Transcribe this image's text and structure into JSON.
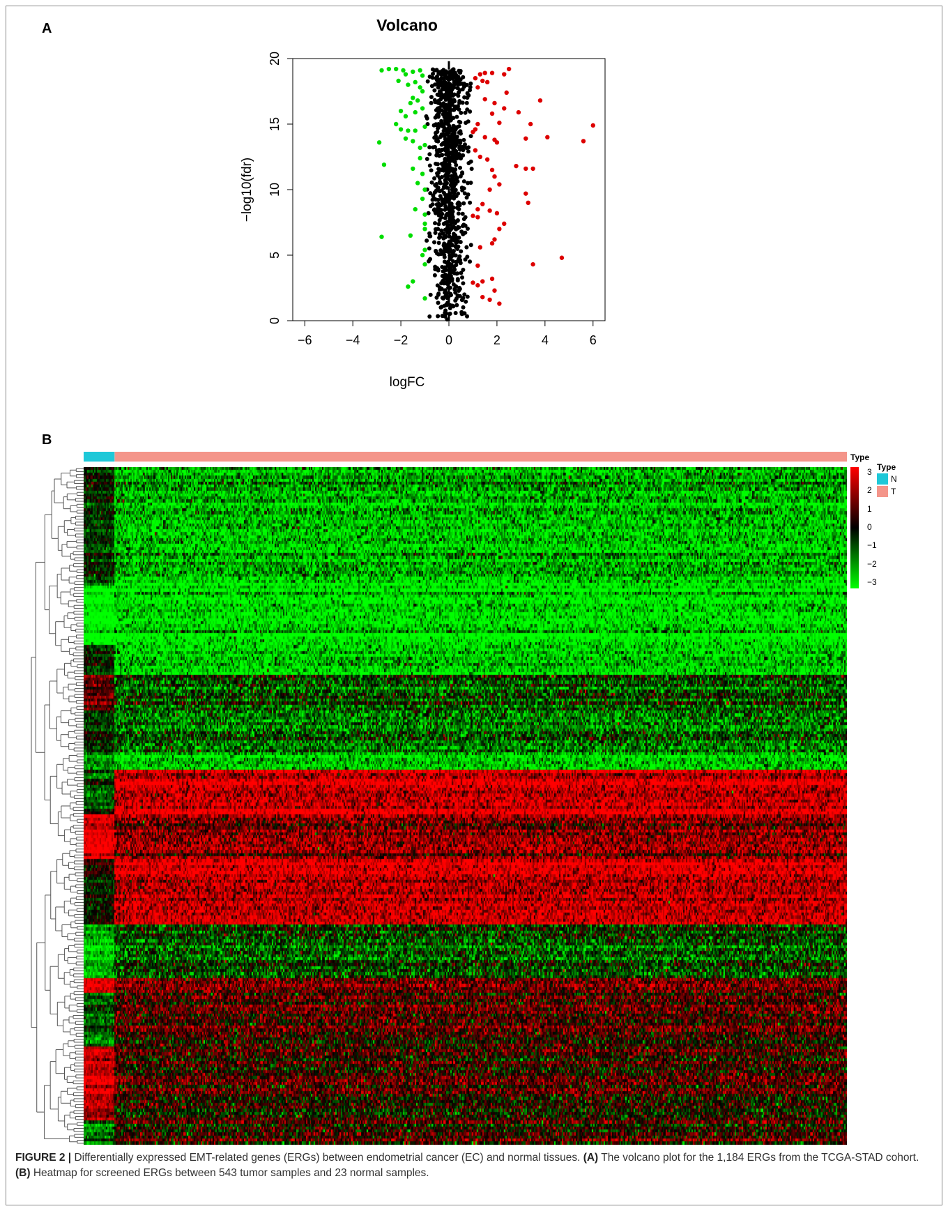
{
  "panels": {
    "a_label": "A",
    "b_label": "B"
  },
  "caption": {
    "figure_label": "FIGURE 2 |",
    "text1": " Differentially expressed EMT-related genes (ERGs) between endometrial cancer (EC) and normal tissues. ",
    "a_ref": "(A)",
    "text2": " The volcano plot for the 1,184 ERGs from the TCGA-STAD cohort. ",
    "b_ref": "(B)",
    "text3": " Heatmap for screened ERGs between 543 tumor samples and 23 normal samples."
  },
  "chart_data": [
    {
      "type": "scatter",
      "title": "Volcano",
      "xlabel": "logFC",
      "ylabel": "−log10(fdr)",
      "xlim": [
        -6.5,
        6.5
      ],
      "ylim": [
        0,
        20
      ],
      "xticks": [
        "−6",
        "−4",
        "−2",
        "0",
        "2",
        "4",
        "6"
      ],
      "xtick_values": [
        -6,
        -4,
        -2,
        0,
        2,
        4,
        6
      ],
      "yticks": [
        "0",
        "5",
        "10",
        "15",
        "20"
      ],
      "ytick_values": [
        0,
        5,
        10,
        15,
        20
      ],
      "grid": false,
      "colors": {
        "down": "#00dd00",
        "up": "#dd0000",
        "ns": "#000000"
      },
      "series": [
        {
          "color_key": "down",
          "points": [
            [
              -2.8,
              19.1
            ],
            [
              -2.5,
              19.2
            ],
            [
              -2.2,
              19.2
            ],
            [
              -1.9,
              19.1
            ],
            [
              -1.8,
              18.8
            ],
            [
              -1.5,
              19.0
            ],
            [
              -1.2,
              19.1
            ],
            [
              -1.1,
              18.7
            ],
            [
              -2.1,
              18.3
            ],
            [
              -1.7,
              18.0
            ],
            [
              -1.4,
              18.2
            ],
            [
              -1.2,
              17.8
            ],
            [
              -1.1,
              17.5
            ],
            [
              -1.5,
              17.0
            ],
            [
              -1.3,
              16.8
            ],
            [
              -1.6,
              16.6
            ],
            [
              -2.0,
              16.0
            ],
            [
              -1.8,
              15.6
            ],
            [
              -1.4,
              15.9
            ],
            [
              -1.1,
              16.2
            ],
            [
              -2.2,
              15.0
            ],
            [
              -2.0,
              14.6
            ],
            [
              -1.7,
              14.5
            ],
            [
              -1.4,
              14.5
            ],
            [
              -1.0,
              14.8
            ],
            [
              -2.9,
              13.6
            ],
            [
              -1.8,
              13.9
            ],
            [
              -1.5,
              13.7
            ],
            [
              -1.2,
              13.2
            ],
            [
              -1.0,
              13.4
            ],
            [
              -1.2,
              12.4
            ],
            [
              -1.5,
              11.6
            ],
            [
              -2.7,
              11.9
            ],
            [
              -1.1,
              11.2
            ],
            [
              -1.3,
              10.5
            ],
            [
              -1.0,
              10.0
            ],
            [
              -1.1,
              9.3
            ],
            [
              -1.4,
              8.5
            ],
            [
              -1.0,
              8.1
            ],
            [
              -1.0,
              7.4
            ],
            [
              -1.0,
              7.0
            ],
            [
              -2.8,
              6.4
            ],
            [
              -1.6,
              6.5
            ],
            [
              -1.0,
              5.4
            ],
            [
              -1.1,
              5.0
            ],
            [
              -1.0,
              4.3
            ],
            [
              -1.5,
              3.0
            ],
            [
              -1.7,
              2.6
            ],
            [
              -1.0,
              1.7
            ]
          ]
        },
        {
          "color_key": "up",
          "points": [
            [
              1.1,
              18.5
            ],
            [
              1.3,
              18.8
            ],
            [
              1.5,
              18.9
            ],
            [
              1.8,
              18.9
            ],
            [
              2.3,
              18.8
            ],
            [
              2.5,
              19.2
            ],
            [
              1.4,
              18.3
            ],
            [
              1.6,
              18.2
            ],
            [
              1.2,
              17.8
            ],
            [
              2.4,
              17.4
            ],
            [
              1.5,
              16.9
            ],
            [
              1.9,
              16.6
            ],
            [
              3.8,
              16.8
            ],
            [
              2.3,
              16.2
            ],
            [
              1.8,
              15.8
            ],
            [
              2.9,
              15.9
            ],
            [
              1.2,
              15.0
            ],
            [
              1.1,
              14.6
            ],
            [
              2.1,
              15.1
            ],
            [
              3.4,
              15.0
            ],
            [
              6.0,
              14.9
            ],
            [
              1.0,
              14.4
            ],
            [
              1.5,
              14.0
            ],
            [
              1.9,
              13.8
            ],
            [
              2.0,
              13.6
            ],
            [
              4.1,
              14.0
            ],
            [
              3.2,
              13.9
            ],
            [
              5.6,
              13.7
            ],
            [
              1.1,
              13.0
            ],
            [
              1.3,
              12.5
            ],
            [
              1.6,
              12.3
            ],
            [
              2.8,
              11.8
            ],
            [
              3.2,
              11.6
            ],
            [
              3.5,
              11.6
            ],
            [
              1.8,
              11.5
            ],
            [
              1.9,
              11.0
            ],
            [
              2.1,
              10.4
            ],
            [
              1.7,
              10.0
            ],
            [
              3.2,
              9.7
            ],
            [
              1.4,
              8.9
            ],
            [
              1.2,
              8.5
            ],
            [
              1.7,
              8.4
            ],
            [
              3.3,
              9.0
            ],
            [
              1.2,
              7.9
            ],
            [
              2.0,
              8.2
            ],
            [
              2.3,
              7.4
            ],
            [
              2.1,
              7.0
            ],
            [
              1.0,
              8.0
            ],
            [
              1.9,
              6.2
            ],
            [
              1.8,
              5.9
            ],
            [
              1.3,
              5.6
            ],
            [
              4.7,
              4.8
            ],
            [
              3.5,
              4.3
            ],
            [
              1.2,
              4.2
            ],
            [
              1.4,
              3.0
            ],
            [
              1.8,
              3.2
            ],
            [
              1.2,
              2.7
            ],
            [
              1.9,
              2.3
            ],
            [
              2.1,
              1.3
            ],
            [
              1.0,
              2.9
            ],
            [
              1.4,
              1.8
            ],
            [
              1.7,
              1.6
            ]
          ]
        },
        {
          "color_key": "ns",
          "generated_count": 900
        }
      ]
    },
    {
      "type": "heatmap",
      "column_annotation_label": "Type",
      "groups": [
        {
          "label": "N",
          "count": 23,
          "color": "#1ec8d8"
        },
        {
          "label": "T",
          "count": 543,
          "color": "#f4958a"
        }
      ],
      "colorbar": {
        "ticks": [
          "3",
          "2",
          "1",
          "0",
          "−1",
          "−2",
          "−3"
        ],
        "values": [
          3,
          2,
          1,
          0,
          -1,
          -2,
          -3
        ],
        "low_color": "#00ff00",
        "mid_color": "#000000",
        "high_color": "#ff0000"
      },
      "legend_title": "Type",
      "row_blocks": [
        {
          "rows": 40,
          "n_mean": -0.6,
          "t_mean": -2.3
        },
        {
          "rows": 20,
          "n_mean": -3.0,
          "t_mean": -2.6
        },
        {
          "rows": 10,
          "n_mean": -0.5,
          "t_mean": -2.5
        },
        {
          "rows": 12,
          "n_mean": 1.0,
          "t_mean": -0.9
        },
        {
          "rows": 15,
          "n_mean": -0.6,
          "t_mean": -1.4
        },
        {
          "rows": 5,
          "n_mean": -1.5,
          "t_mean": -2.4
        },
        {
          "rows": 15,
          "n_mean": -0.8,
          "t_mean": 2.6
        },
        {
          "rows": 15,
          "n_mean": 2.8,
          "t_mean": 1.5
        },
        {
          "rows": 22,
          "n_mean": -0.2,
          "t_mean": 2.3
        },
        {
          "rows": 18,
          "n_mean": -2.2,
          "t_mean": -0.8
        },
        {
          "rows": 5,
          "n_mean": 2.5,
          "t_mean": 0.9
        },
        {
          "rows": 18,
          "n_mean": -0.9,
          "t_mean": 0.9
        },
        {
          "rows": 25,
          "n_mean": 2.4,
          "t_mean": 0.5
        },
        {
          "rows": 8,
          "n_mean": -1.6,
          "t_mean": 0.2
        }
      ]
    }
  ]
}
